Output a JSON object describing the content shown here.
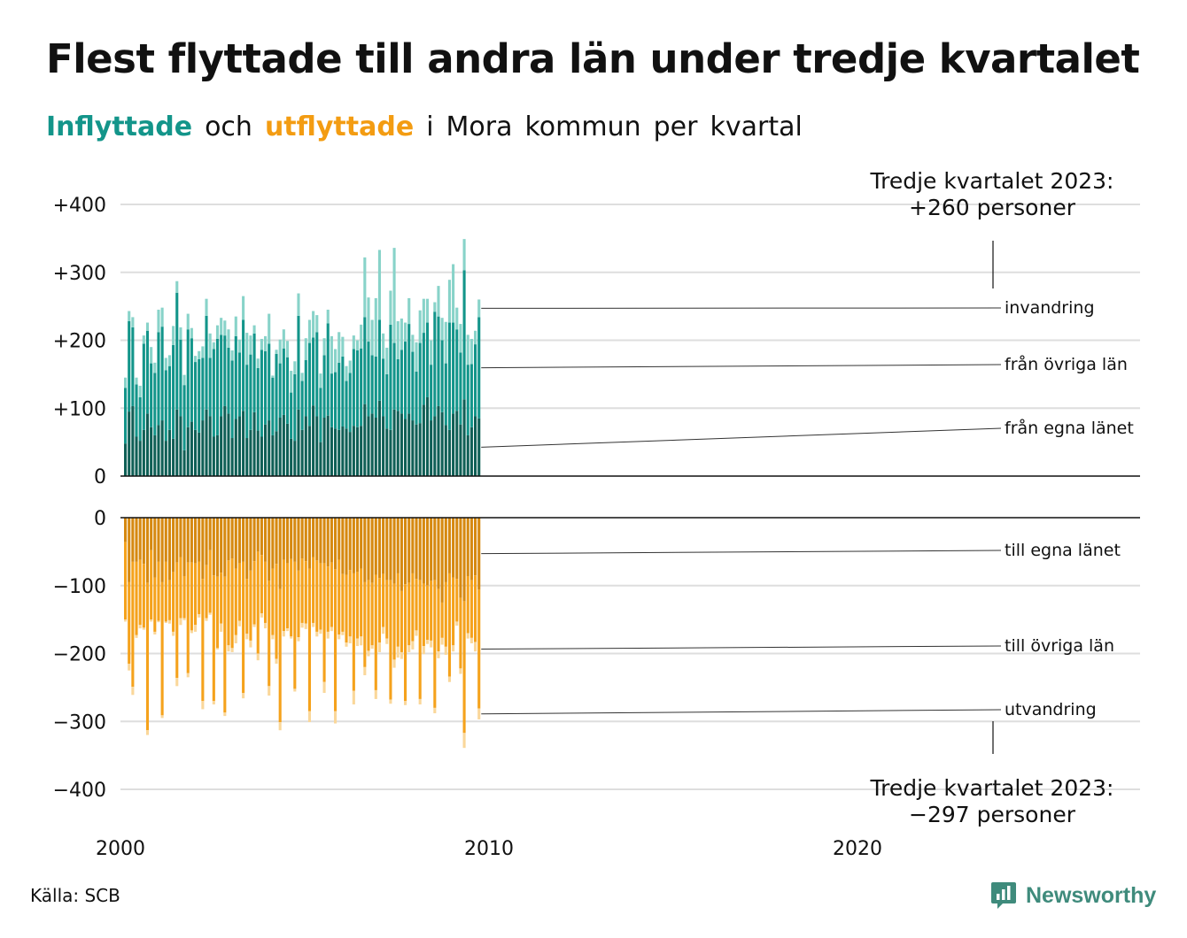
{
  "title": "Flest flyttade till andra län under tredje kvartalet",
  "subtitle": {
    "part1": "Inflyttade",
    "part2": "och",
    "part3": "utflyttade",
    "part4": "i",
    "part5": "Mora",
    "part6": "kommun",
    "part7": "per",
    "part8": "kvartal"
  },
  "callout_top": {
    "line1": "Tredje kvartalet 2023:",
    "line2": "+260 personer"
  },
  "callout_bottom": {
    "line1": "Tredje kvartalet 2023:",
    "line2": "−297 personer"
  },
  "source": "Källa: SCB",
  "brand": {
    "name": "Newsworthy",
    "icon": "newsworthy-logo-icon"
  },
  "colors": {
    "in_egna": "#0f5f56",
    "in_ovriga": "#13958a",
    "in_invandring": "#88d3c9",
    "out_egna": "#d68910",
    "out_ovriga": "#f5a21c",
    "out_utvandring": "#fad79a",
    "subtitle_in": "#13958a",
    "subtitle_out": "#f39c12",
    "brand": "#3f8b7c"
  },
  "chart_data": {
    "type": "bar",
    "stacked": true,
    "x_start": "2000 Q1",
    "x_end": "2023 Q3",
    "x_ticks": [
      2000,
      2010,
      2020
    ],
    "x_tick_labels": [
      "2000",
      "2010",
      "2020"
    ],
    "grid": true,
    "panels": [
      {
        "name": "Inflyttade",
        "ylim": [
          0,
          400
        ],
        "y_ticks": [
          0,
          100,
          200,
          300,
          400
        ],
        "y_tick_labels": [
          "0",
          "+100",
          "+200",
          "+300",
          "+400"
        ],
        "series": [
          {
            "name": "från egna länet",
            "values": [
              48,
              95,
              103,
              58,
              52,
              68,
              92,
              72,
              60,
              75,
              82,
              52,
              68,
              55,
              98,
              88,
              38,
              72,
              80,
              68,
              64,
              82,
              98,
              88,
              58,
              60,
              88,
              103,
              92,
              56,
              84,
              88,
              96,
              56,
              68,
              94,
              67,
              58,
              76,
              82,
              60,
              66,
              86,
              90,
              77,
              55,
              52,
              98,
              68,
              88,
              74,
              104,
              88,
              50,
              86,
              89,
              72,
              70,
              68,
              73,
              70,
              65,
              74,
              72,
              74,
              106,
              88,
              92,
              86,
              111,
              88,
              70,
              68,
              98,
              96,
              92,
              84,
              92,
              82,
              76,
              78,
              105,
              116,
              82,
              88,
              103,
              94,
              75,
              68,
              92,
              96,
              76,
              113,
              60,
              72,
              88,
              85
            ]
          },
          {
            "name": "från övriga län",
            "values": [
              82,
              133,
              116,
              77,
              64,
              127,
              122,
              94,
              92,
              137,
              138,
              104,
              94,
              138,
              172,
              113,
              96,
              144,
              123,
              100,
              108,
              92,
              138,
              86,
              129,
              142,
              120,
              104,
              97,
              114,
              122,
              94,
              134,
              108,
              111,
              116,
              92,
              128,
              108,
              113,
              85,
              114,
              80,
              98,
              98,
              68,
              98,
              138,
              72,
              83,
              122,
              100,
              124,
              80,
              92,
              136,
              79,
              83,
              99,
              103,
              70,
              87,
              113,
              113,
              114,
              128,
              110,
              86,
              90,
              119,
              85,
              80,
              155,
              98,
              76,
              94,
              114,
              132,
              101,
              78,
              118,
              106,
              110,
              82,
              154,
              132,
              106,
              91,
              158,
              134,
              120,
              106,
              190,
              104,
              93,
              106,
              149
            ]
          },
          {
            "name": "invandring",
            "values": [
              15,
              15,
              15,
              10,
              17,
              12,
              12,
              24,
              15,
              33,
              28,
              18,
              16,
              28,
              17,
              18,
              15,
              23,
              15,
              9,
              12,
              17,
              25,
              36,
              10,
              20,
              25,
              22,
              27,
              15,
              29,
              19,
              35,
              47,
              28,
              12,
              14,
              16,
              22,
              44,
              3,
              6,
              35,
              28,
              24,
              32,
              19,
              33,
              12,
              32,
              34,
              39,
              25,
              21,
              25,
              20,
              55,
              34,
              45,
              29,
              22,
              18,
              20,
              15,
              35,
              88,
              65,
              52,
              86,
              103,
              37,
              39,
              50,
              140,
              56,
              46,
              28,
              38,
              25,
              43,
              48,
              50,
              35,
              36,
              14,
              45,
              33,
              61,
              63,
              86,
              32,
              42,
              46,
              44,
              37,
              20,
              26
            ]
          }
        ]
      },
      {
        "name": "Utflyttade",
        "ylim": [
          -400,
          0
        ],
        "y_ticks": [
          0,
          -100,
          -200,
          -300,
          -400
        ],
        "y_tick_labels": [
          "0",
          "−100",
          "−200",
          "−300",
          "−400"
        ],
        "series": [
          {
            "name": "till egna länet",
            "values": [
              -36,
              -95,
              -65,
              -65,
              -62,
              -68,
              -96,
              -48,
              -88,
              -65,
              -95,
              -65,
              -92,
              -80,
              -66,
              -58,
              -86,
              -66,
              -66,
              -67,
              -65,
              -90,
              -70,
              -48,
              -85,
              -87,
              -81,
              -87,
              -63,
              -60,
              -75,
              -67,
              -65,
              -90,
              -78,
              -64,
              -50,
              -55,
              -65,
              -93,
              -75,
              -68,
              -105,
              -62,
              -67,
              -61,
              -65,
              -78,
              -60,
              -64,
              -75,
              -58,
              -63,
              -67,
              -67,
              -72,
              -66,
              -76,
              -62,
              -83,
              -84,
              -77,
              -82,
              -80,
              -75,
              -95,
              -92,
              -96,
              -84,
              -89,
              -83,
              -92,
              -92,
              -97,
              -82,
              -108,
              -98,
              -96,
              -82,
              -90,
              -92,
              -97,
              -100,
              -93,
              -92,
              -105,
              -125,
              -95,
              -82,
              -88,
              -90,
              -118,
              -123,
              -86,
              -92,
              -85,
              -106
            ]
          },
          {
            "name": "till övriga län",
            "values": [
              -114,
              -120,
              -184,
              -108,
              -96,
              -94,
              -217,
              -102,
              -80,
              -87,
              -196,
              -88,
              -59,
              -88,
              -170,
              -90,
              -62,
              -163,
              -100,
              -91,
              -77,
              -180,
              -78,
              -92,
              -185,
              -105,
              -75,
              -200,
              -125,
              -132,
              -98,
              -85,
              -193,
              -81,
              -103,
              -93,
              -150,
              -86,
              -90,
              -155,
              -98,
              -140,
              -196,
              -105,
              -96,
              -114,
              -187,
              -98,
              -95,
              -92,
              -210,
              -97,
              -105,
              -98,
              -175,
              -96,
              -95,
              -209,
              -110,
              -85,
              -100,
              -98,
              -173,
              -98,
              -100,
              -125,
              -104,
              -92,
              -170,
              -95,
              -78,
              -86,
              -176,
              -112,
              -108,
              -90,
              -172,
              -92,
              -100,
              -76,
              -175,
              -92,
              -80,
              -88,
              -188,
              -92,
              -52,
              -95,
              -152,
              -100,
              -63,
              -104,
              -194,
              -84,
              -85,
              -98,
              -175
            ]
          },
          {
            "name": "utvandring",
            "values": [
              -3,
              -10,
              -12,
              -4,
              -5,
              -3,
              -7,
              -3,
              -4,
              -2,
              -4,
              -2,
              -5,
              -6,
              -12,
              -10,
              -3,
              -6,
              -4,
              -10,
              -5,
              -12,
              -4,
              -3,
              -5,
              -2,
              -12,
              -5,
              -9,
              -6,
              -12,
              -8,
              -8,
              -8,
              -10,
              -4,
              -10,
              -6,
              -8,
              -14,
              -6,
              -7,
              -12,
              -8,
              -4,
              -3,
              -4,
              -6,
              -7,
              -8,
              -16,
              -6,
              -7,
              -6,
              -16,
              -10,
              -6,
              -18,
              -7,
              -5,
              -6,
              -10,
              -20,
              -11,
              -13,
              -12,
              -8,
              -5,
              -13,
              -14,
              -10,
              -8,
              -6,
              -12,
              -16,
              -10,
              -6,
              -10,
              -12,
              -8,
              -8,
              -12,
              -6,
              -10,
              -8,
              -10,
              -10,
              -12,
              -8,
              -9,
              -6,
              -8,
              -22,
              -8,
              -8,
              -14,
              -16
            ]
          }
        ]
      }
    ]
  }
}
